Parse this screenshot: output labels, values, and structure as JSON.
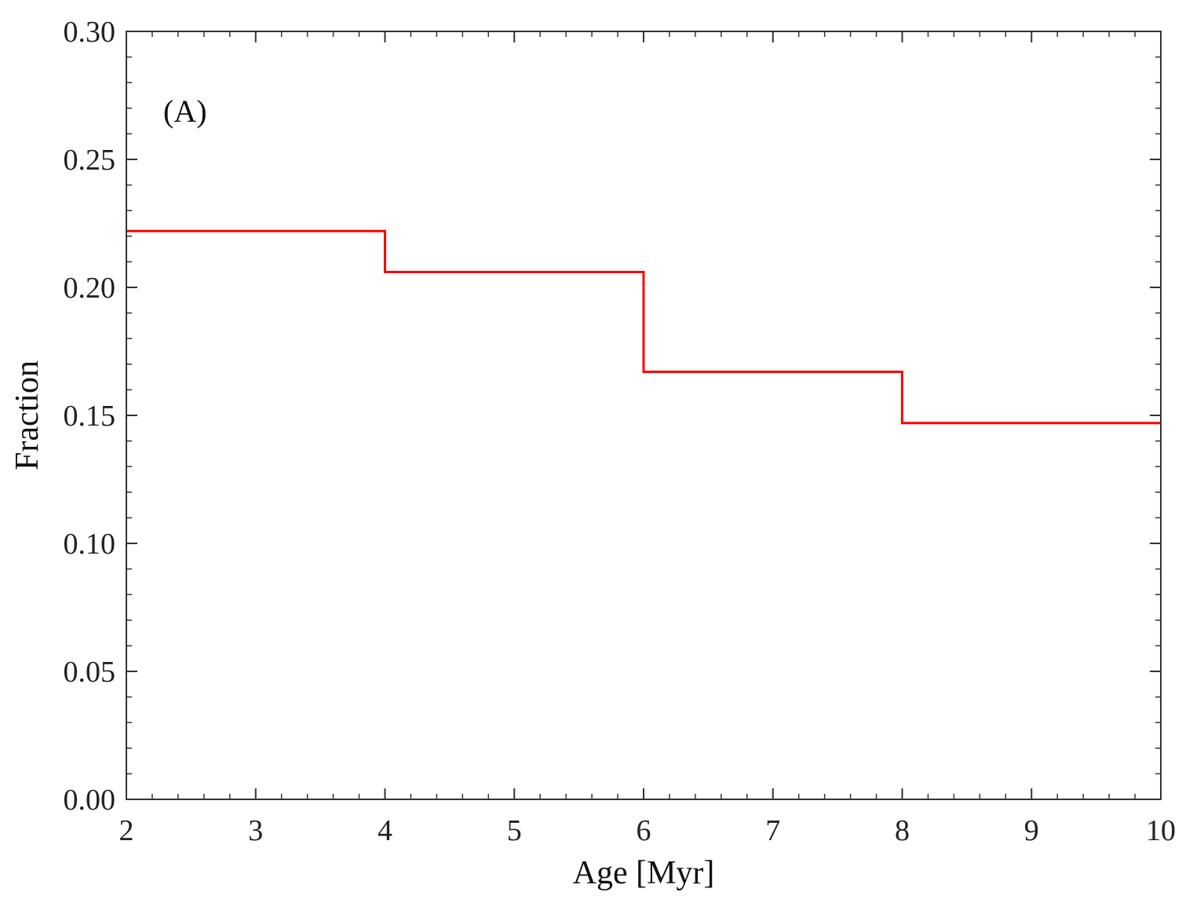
{
  "chart_data": {
    "type": "line",
    "step": "post",
    "annotation": "(A)",
    "xlabel": "Age [Myr]",
    "ylabel": "Fraction",
    "xlim": [
      2,
      10
    ],
    "ylim": [
      0.0,
      0.3
    ],
    "xticks": [
      2,
      3,
      4,
      5,
      6,
      7,
      8,
      9,
      10
    ],
    "xtick_labels": [
      "2",
      "3",
      "4",
      "5",
      "6",
      "7",
      "8",
      "9",
      "10"
    ],
    "yticks": [
      0.0,
      0.05,
      0.1,
      0.15,
      0.2,
      0.25,
      0.3
    ],
    "ytick_labels": [
      "0.00",
      "0.05",
      "0.10",
      "0.15",
      "0.20",
      "0.25",
      "0.30"
    ],
    "x_minor_step": 0.2,
    "y_minor_step": 0.01,
    "grid": false,
    "series": [
      {
        "color": "#ff0000",
        "bin_edges": [
          2,
          4,
          6,
          8,
          10
        ],
        "values": [
          0.222,
          0.206,
          0.167,
          0.147
        ]
      }
    ]
  }
}
